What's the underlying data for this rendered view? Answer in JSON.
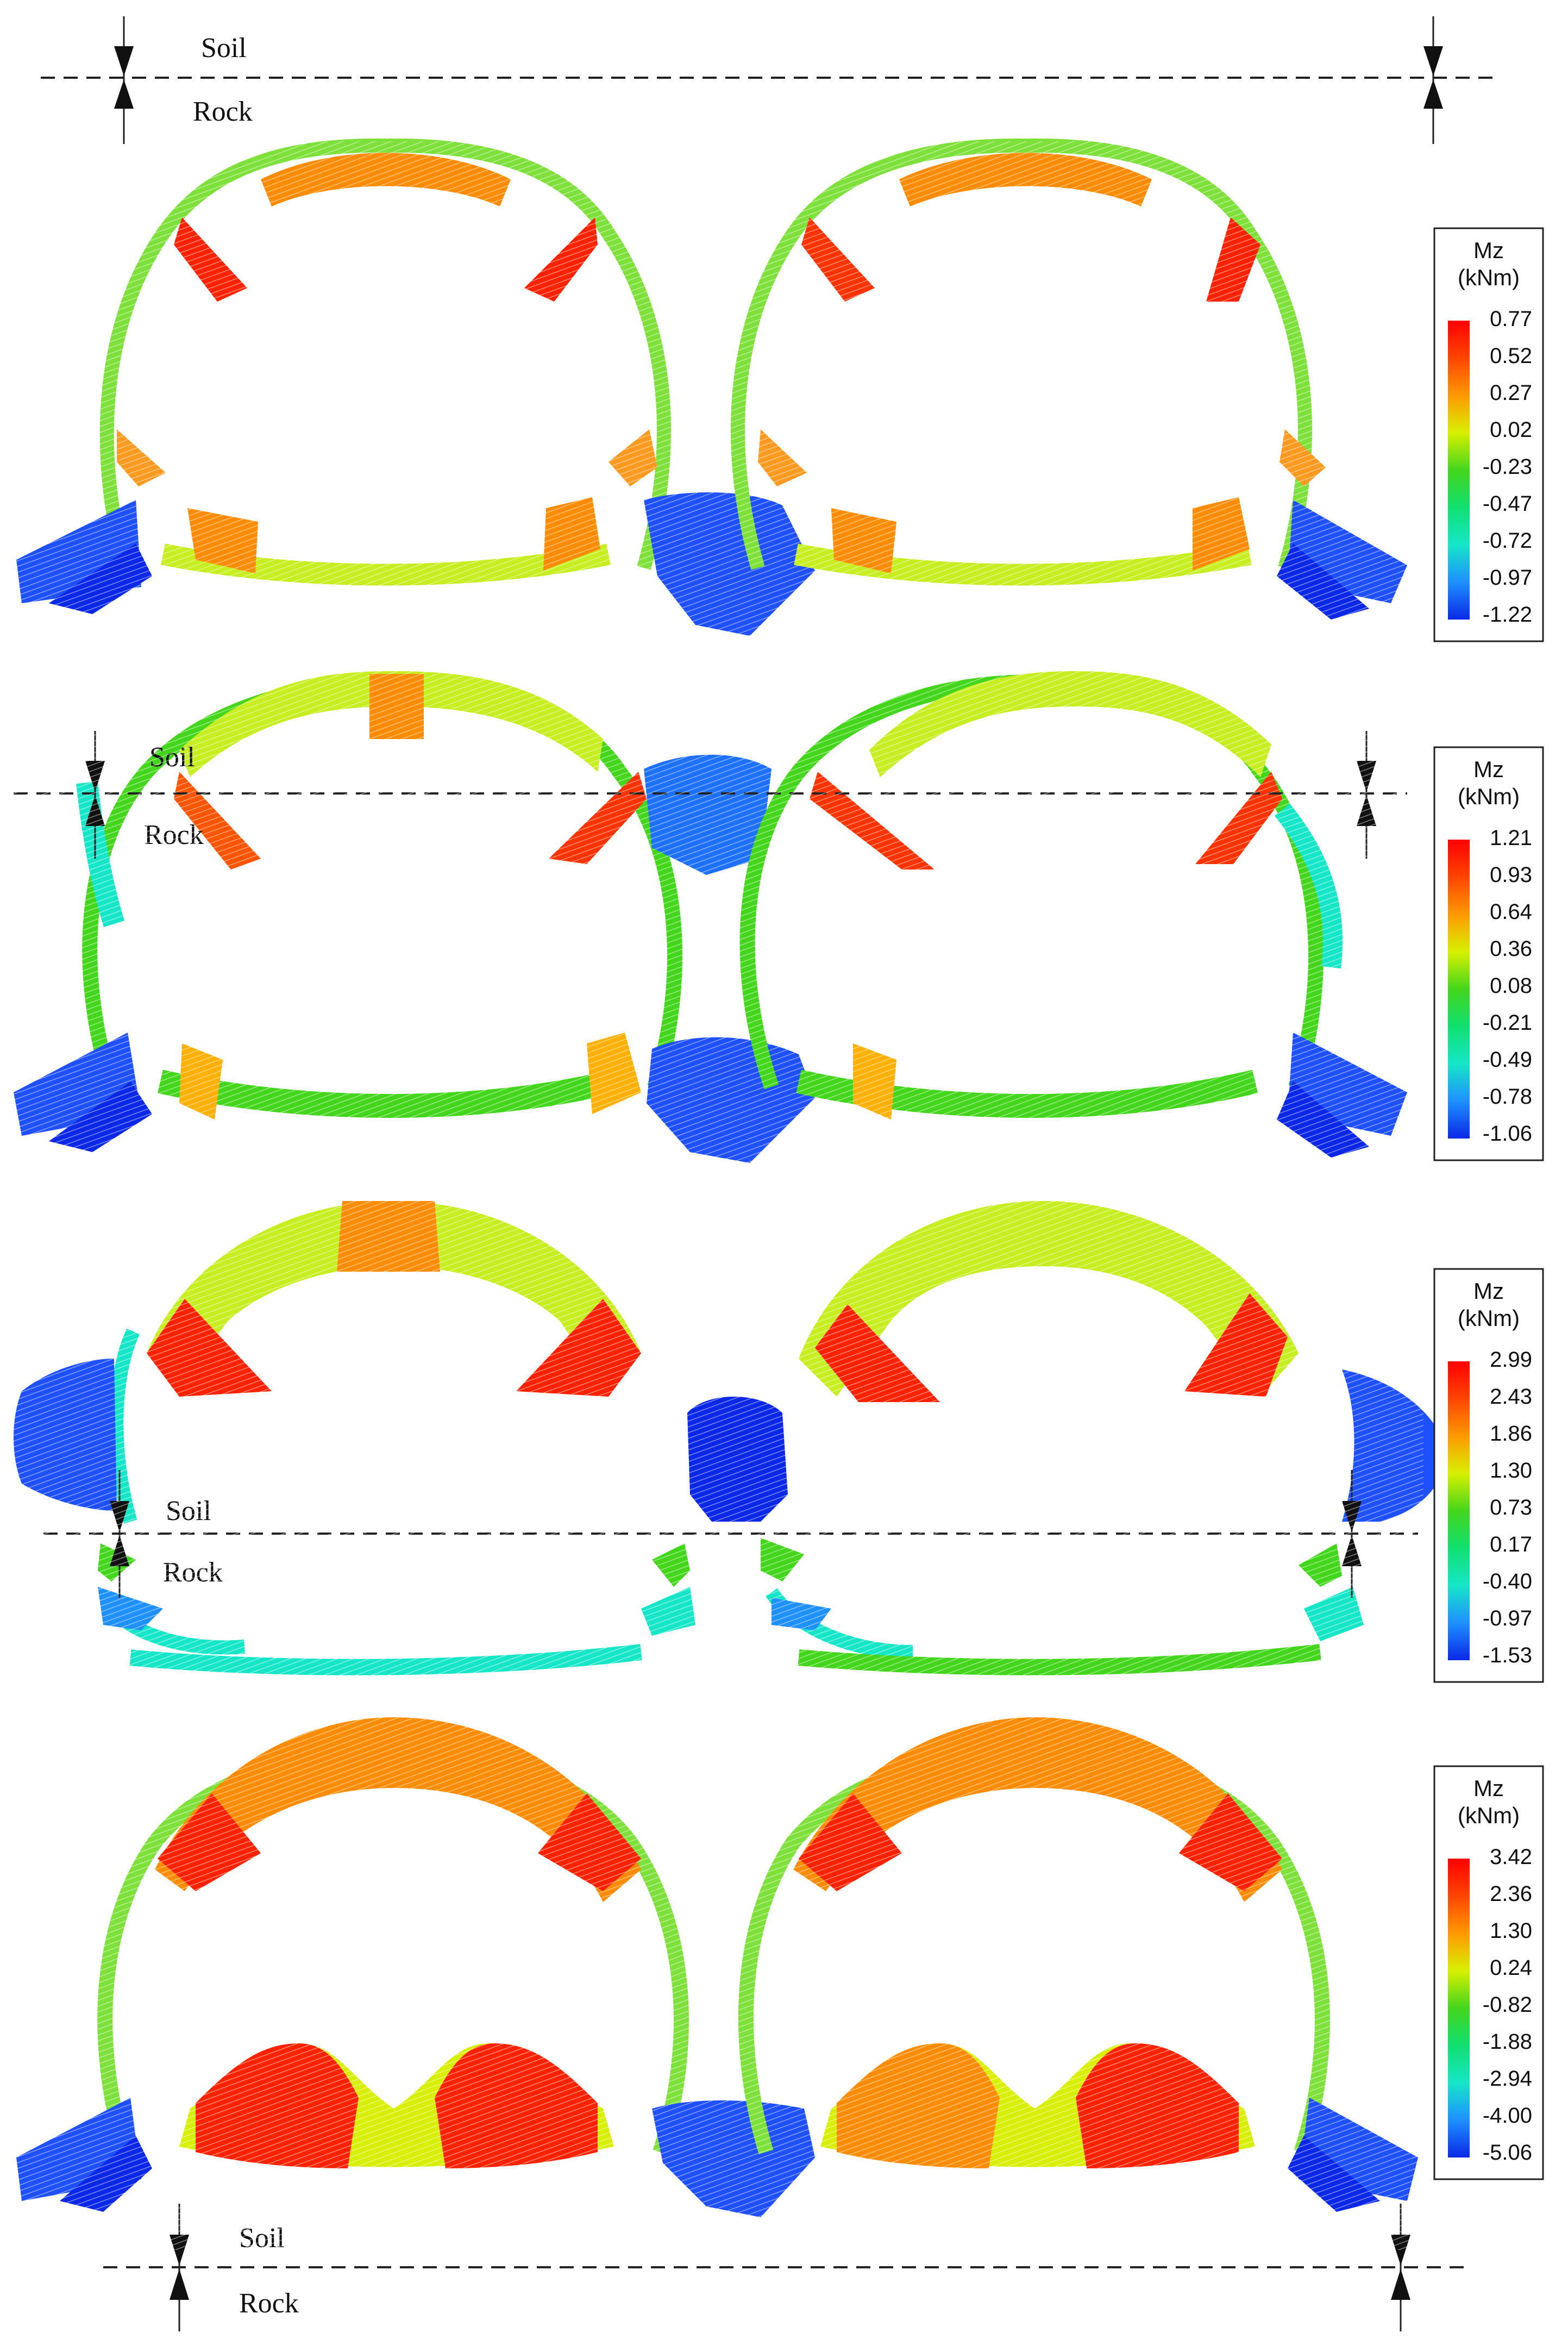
{
  "labels": {
    "soil": "Soil",
    "rock": "Rock"
  },
  "legend": {
    "title_line1": "Mz",
    "title_line2": "(kNm)"
  },
  "colors": {
    "scale": [
      "#ff0000",
      "#ff8c00",
      "#d8f000",
      "#44d61c",
      "#16e6c8",
      "#1e90ff",
      "#0a28e6"
    ],
    "line": "#222222"
  },
  "panels": [
    {
      "id": "p1",
      "soil_position": "above",
      "values": [
        "0.77",
        "0.52",
        "0.27",
        "0.02",
        "-0.23",
        "-0.47",
        "-0.72",
        "-0.97",
        "-1.22"
      ]
    },
    {
      "id": "p2",
      "soil_position": "upper",
      "values": [
        "1.21",
        "0.93",
        "0.64",
        "0.36",
        "0.08",
        "-0.21",
        "-0.49",
        "-0.78",
        "-1.06"
      ]
    },
    {
      "id": "p3",
      "soil_position": "lower",
      "values": [
        "2.99",
        "2.43",
        "1.86",
        "1.30",
        "0.73",
        "0.17",
        "-0.40",
        "-0.97",
        "-1.53"
      ]
    },
    {
      "id": "p4",
      "soil_position": "below",
      "values": [
        "3.42",
        "2.36",
        "1.30",
        "0.24",
        "-0.82",
        "-1.88",
        "-2.94",
        "-4.00",
        "-5.06"
      ]
    }
  ]
}
